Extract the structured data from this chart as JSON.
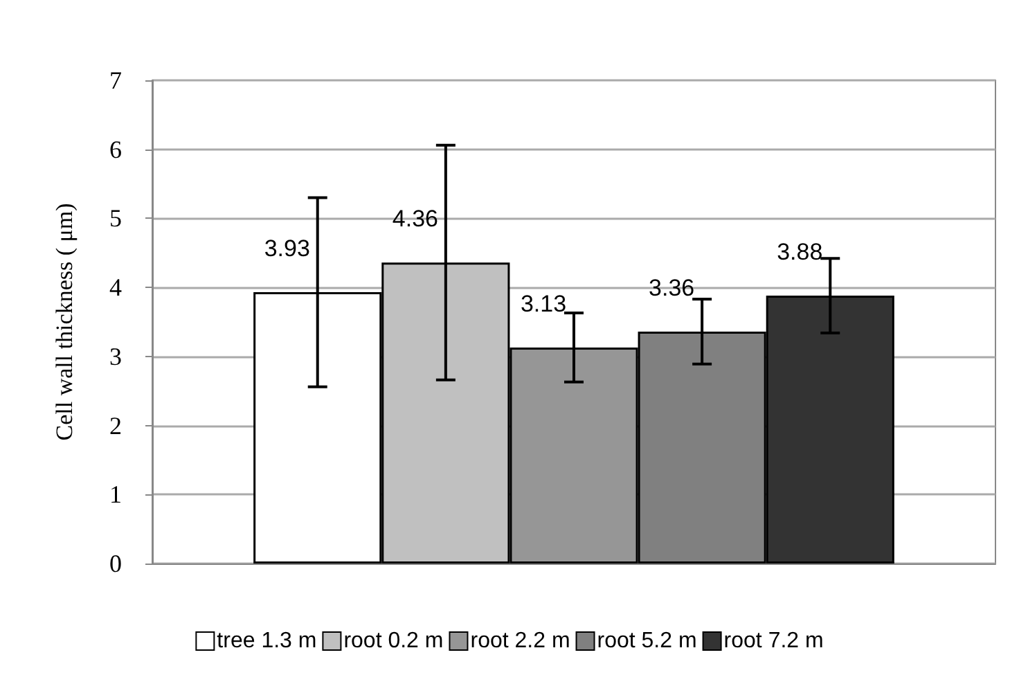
{
  "chart_data": {
    "type": "bar",
    "ylabel": "Cell wall thickness ( μm)",
    "categories": [
      null
    ],
    "series": [
      {
        "name": "tree 1.3 m",
        "color": "#ffffff",
        "values": [
          3.93
        ],
        "errors": [
          1.37
        ]
      },
      {
        "name": "root 0.2 m",
        "color": "#c0c0c0",
        "values": [
          4.36
        ],
        "errors": [
          1.7
        ]
      },
      {
        "name": "root 2.2 m",
        "color": "#969696",
        "values": [
          3.13
        ],
        "errors": [
          0.5
        ]
      },
      {
        "name": "root 5.2 m",
        "color": "#808080",
        "values": [
          3.36
        ],
        "errors": [
          0.47
        ]
      },
      {
        "name": "root 7.2 m",
        "color": "#333333",
        "values": [
          3.88
        ],
        "errors": [
          0.54
        ]
      }
    ],
    "ylim": [
      0,
      7
    ],
    "yticks": [
      0,
      1,
      2,
      3,
      4,
      5,
      6,
      7
    ],
    "grid": "y",
    "legend": "bottom",
    "data_labels": true
  }
}
